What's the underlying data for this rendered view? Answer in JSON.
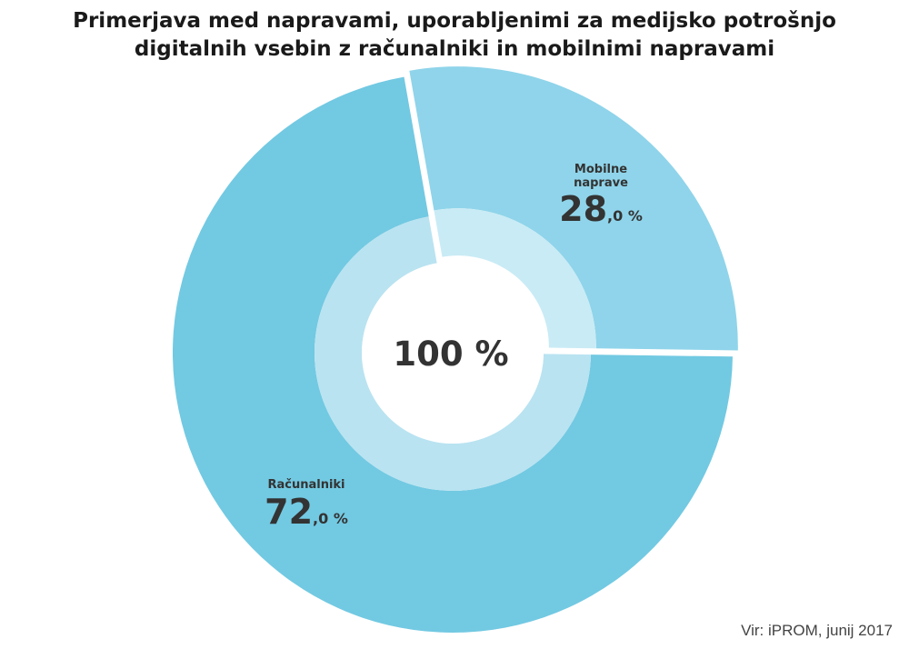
{
  "title_lines": [
    "Primerjava med napravami, uporabljenimi za medijsko potrošnjo",
    "digitalnih vsebin z računalniki in mobilnimi napravami"
  ],
  "source": "Vir: iPROM, junij 2017",
  "colors": {
    "outer_desktop": "#72c9e2",
    "outer_mobile": "#8fd4ea",
    "inner_desktop": "#b9e3f1",
    "inner_mobile": "#c9ebf5",
    "label_text": "#333333"
  },
  "chart_data": {
    "type": "pie",
    "variant": "donut",
    "center_label": "100 %",
    "slices": [
      {
        "label": "Mobilne naprave",
        "label_lines": [
          "Mobilne",
          "naprave"
        ],
        "value": 28.0,
        "value_int": "28",
        "value_dec": ",0 %",
        "exploded": true
      },
      {
        "label": "Računalniki",
        "label_lines": [
          "Računalniki"
        ],
        "value": 72.0,
        "value_int": "72",
        "value_dec": ",0 %",
        "exploded": false
      }
    ]
  }
}
